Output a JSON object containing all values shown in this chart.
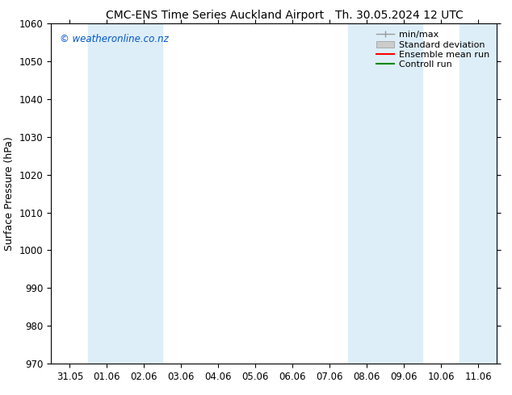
{
  "title_left": "CMC-ENS Time Series Auckland Airport",
  "title_right": "Th. 30.05.2024 12 UTC",
  "ylabel": "Surface Pressure (hPa)",
  "ylim": [
    970,
    1060
  ],
  "yticks": [
    970,
    980,
    990,
    1000,
    1010,
    1020,
    1030,
    1040,
    1050,
    1060
  ],
  "x_labels": [
    "31.05",
    "01.06",
    "02.06",
    "03.06",
    "04.06",
    "05.06",
    "06.06",
    "07.06",
    "08.06",
    "09.06",
    "10.06",
    "11.06"
  ],
  "shaded_indices": [
    1,
    2,
    8,
    9,
    11
  ],
  "shaded_color": "#ddeef9",
  "background_color": "#ffffff",
  "watermark": "© weatheronline.co.nz",
  "watermark_color": "#0055cc",
  "legend_items": [
    {
      "label": "min/max",
      "style": "minmax"
    },
    {
      "label": "Standard deviation",
      "style": "stddev"
    },
    {
      "label": "Ensemble mean run",
      "color": "#ff0000",
      "style": "line"
    },
    {
      "label": "Controll run",
      "color": "#008800",
      "style": "line"
    }
  ],
  "title_fontsize": 10,
  "ylabel_fontsize": 9,
  "tick_fontsize": 8.5,
  "legend_fontsize": 8
}
